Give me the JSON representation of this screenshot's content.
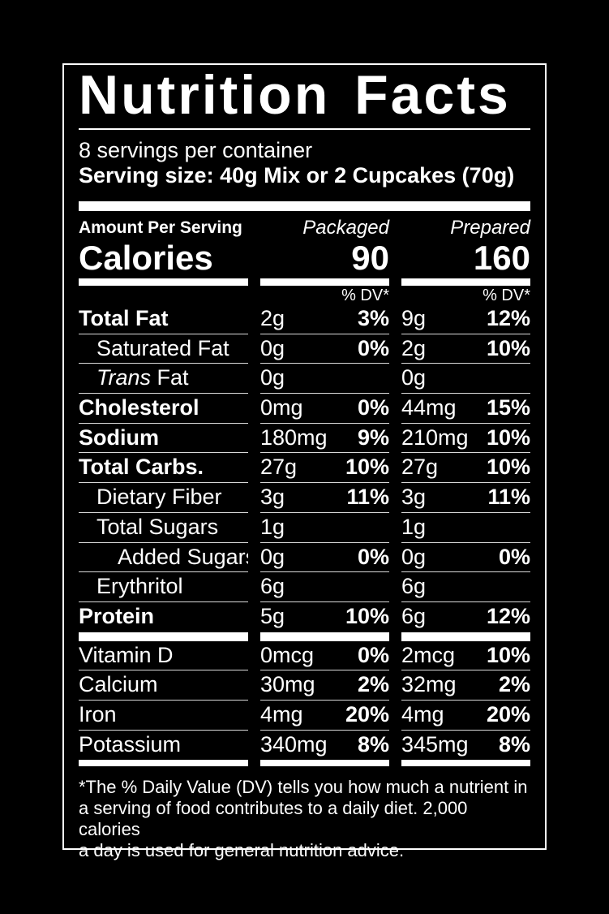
{
  "label": {
    "title": "Nutrition Facts",
    "servings_per_container": "8 servings per container",
    "serving_size": "Serving size: 40g Mix or 2 Cupcakes (70g)",
    "amount_per_serving_label": "Amount Per Serving",
    "column_headers": {
      "packaged": "Packaged",
      "prepared": "Prepared"
    },
    "calories": {
      "label": "Calories",
      "packaged": "90",
      "prepared": "160"
    },
    "dv_header": "% DV*",
    "nutrients": [
      {
        "name": "Total Fat",
        "style": "bold",
        "indent": 0,
        "packaged": {
          "amount": "2g",
          "dv": "3%"
        },
        "prepared": {
          "amount": "9g",
          "dv": "12%"
        }
      },
      {
        "name": "Saturated Fat",
        "style": "regular",
        "indent": 1,
        "packaged": {
          "amount": "0g",
          "dv": "0%"
        },
        "prepared": {
          "amount": "2g",
          "dv": "10%"
        }
      },
      {
        "name_italic": "Trans",
        "name": " Fat",
        "style": "regular",
        "indent": 1,
        "packaged": {
          "amount": "0g",
          "dv": ""
        },
        "prepared": {
          "amount": "0g",
          "dv": ""
        }
      },
      {
        "name": "Cholesterol",
        "style": "bold",
        "indent": 0,
        "packaged": {
          "amount": "0mg",
          "dv": "0%"
        },
        "prepared": {
          "amount": "44mg",
          "dv": "15%"
        }
      },
      {
        "name": "Sodium",
        "style": "bold",
        "indent": 0,
        "packaged": {
          "amount": "180mg",
          "dv": "9%"
        },
        "prepared": {
          "amount": "210mg",
          "dv": "10%"
        }
      },
      {
        "name": "Total Carbs.",
        "style": "bold",
        "indent": 0,
        "packaged": {
          "amount": "27g",
          "dv": "10%"
        },
        "prepared": {
          "amount": "27g",
          "dv": "10%"
        }
      },
      {
        "name": "Dietary Fiber",
        "style": "regular",
        "indent": 1,
        "packaged": {
          "amount": "3g",
          "dv": "11%"
        },
        "prepared": {
          "amount": "3g",
          "dv": "11%"
        }
      },
      {
        "name": "Total Sugars",
        "style": "regular",
        "indent": 1,
        "packaged": {
          "amount": "1g",
          "dv": ""
        },
        "prepared": {
          "amount": "1g",
          "dv": ""
        }
      },
      {
        "name": "Added Sugars",
        "style": "regular",
        "indent": 2,
        "packaged": {
          "amount": "0g",
          "dv": "0%"
        },
        "prepared": {
          "amount": "0g",
          "dv": "0%"
        }
      },
      {
        "name": "Erythritol",
        "style": "regular",
        "indent": 1,
        "packaged": {
          "amount": "6g",
          "dv": ""
        },
        "prepared": {
          "amount": "6g",
          "dv": ""
        }
      },
      {
        "name": "Protein",
        "style": "bold",
        "indent": 0,
        "packaged": {
          "amount": "5g",
          "dv": "10%"
        },
        "prepared": {
          "amount": "6g",
          "dv": "12%"
        }
      }
    ],
    "micronutrients": [
      {
        "name": "Vitamin D",
        "style": "regular",
        "indent": 0,
        "packaged": {
          "amount": "0mcg",
          "dv": "0%"
        },
        "prepared": {
          "amount": "2mcg",
          "dv": "10%"
        }
      },
      {
        "name": "Calcium",
        "style": "regular",
        "indent": 0,
        "packaged": {
          "amount": "30mg",
          "dv": "2%"
        },
        "prepared": {
          "amount": "32mg",
          "dv": "2%"
        }
      },
      {
        "name": "Iron",
        "style": "regular",
        "indent": 0,
        "packaged": {
          "amount": "4mg",
          "dv": "20%"
        },
        "prepared": {
          "amount": "4mg",
          "dv": "20%"
        }
      },
      {
        "name": "Potassium",
        "style": "regular",
        "indent": 0,
        "packaged": {
          "amount": "340mg",
          "dv": "8%"
        },
        "prepared": {
          "amount": "345mg",
          "dv": "8%"
        }
      }
    ],
    "footnote_lines": [
      "*The % Daily Value (DV) tells you how much a nutrient in",
      "a serving of food contributes to a daily diet. 2,000 calories",
      "a day is used for general nutrition advice."
    ],
    "colors": {
      "background": "#000000",
      "text": "#ffffff",
      "hairline": "#d9d9d9"
    }
  }
}
